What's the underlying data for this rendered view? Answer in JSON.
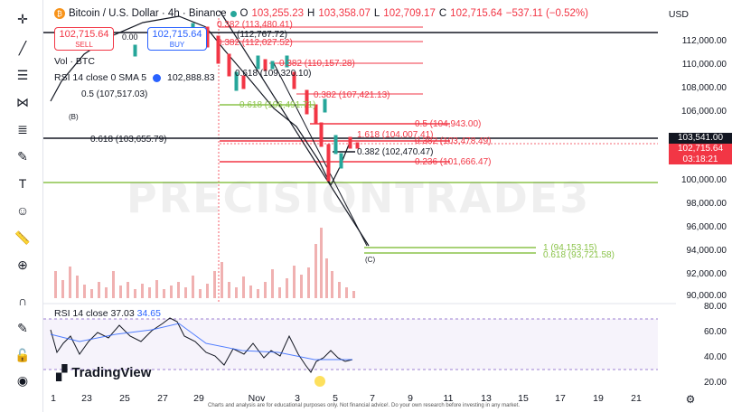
{
  "header": {
    "symbol": "Bitcoin / U.S. Dollar · 4h · Binance",
    "open_label": "O",
    "open": "103,255.23",
    "high_label": "H",
    "high": "103,358.07",
    "low_label": "L",
    "low": "102,709.17",
    "close_label": "C",
    "close": "102,715.64",
    "change": "−537.11 (−0.52%)",
    "currency": "USD"
  },
  "trade": {
    "sell_price": "102,715.64",
    "sell_label": "SELL",
    "spread": "0.00",
    "buy_price": "102,715.64",
    "buy_label": "BUY"
  },
  "indicators": {
    "vol": "Vol · BTC",
    "rsi_header": "RSI 14 close 0 SMA 5",
    "rsi_value": "102,888.83"
  },
  "fib_labels": {
    "f1": "0.382 (113,480.41)",
    "f2": "(112,767.72)",
    "f3": "0.382 (112,027.52)",
    "f4": "0.618 (109,320.10)",
    "f5": "0.382 (110,157.28)",
    "f6": "0.5 (107,517.03)",
    "f7": "0.382 (107,421.13)",
    "f8": "0.618 (106,491.71)",
    "f9": "0.5 (104,943.00)",
    "f10": "1.618 (104,007.41)",
    "f11": "0.382 (103,478.49)",
    "f12": "0.618 (103,655.79)",
    "f13": "0.382 (102,470.47)",
    "f14": "0.236 (101,666.47)",
    "f15": "1 (94,153.15)",
    "f16": "0.618 (93,721.58)",
    "wave_b": "(B)",
    "wave_c": "(C)"
  },
  "price_axis": [
    "112,000.00",
    "110,000.00",
    "108,000.00",
    "106,000.00",
    "100,000.00",
    "98,000.00",
    "96,000.00",
    "94,000.00",
    "92,000.00",
    "90,000.00"
  ],
  "price_tags": {
    "current_black": "103,541.00",
    "current_red": "102,715.64",
    "countdown": "03:18:21"
  },
  "rsi": {
    "label": "RSI 14 close",
    "value1": "37.03",
    "value2": "34.65",
    "axis": [
      "80.00",
      "60.00",
      "40.00",
      "20.00"
    ]
  },
  "time_axis": [
    "1",
    "23",
    "25",
    "27",
    "29",
    "Nov",
    "3",
    "5",
    "7",
    "9",
    "11",
    "13",
    "15",
    "17",
    "19",
    "21"
  ],
  "watermark": "PRECISIONTRADE3",
  "brand": "TradingView",
  "disclaimer": "Charts and analysis are for educational purposes only. Not financial advice!. Do your own research before investing in any market.",
  "colors": {
    "red": "#f23645",
    "green": "#26a69a",
    "blue": "#2962ff",
    "lime": "#8bc34a",
    "rsi_purple": "#7e57c2"
  }
}
